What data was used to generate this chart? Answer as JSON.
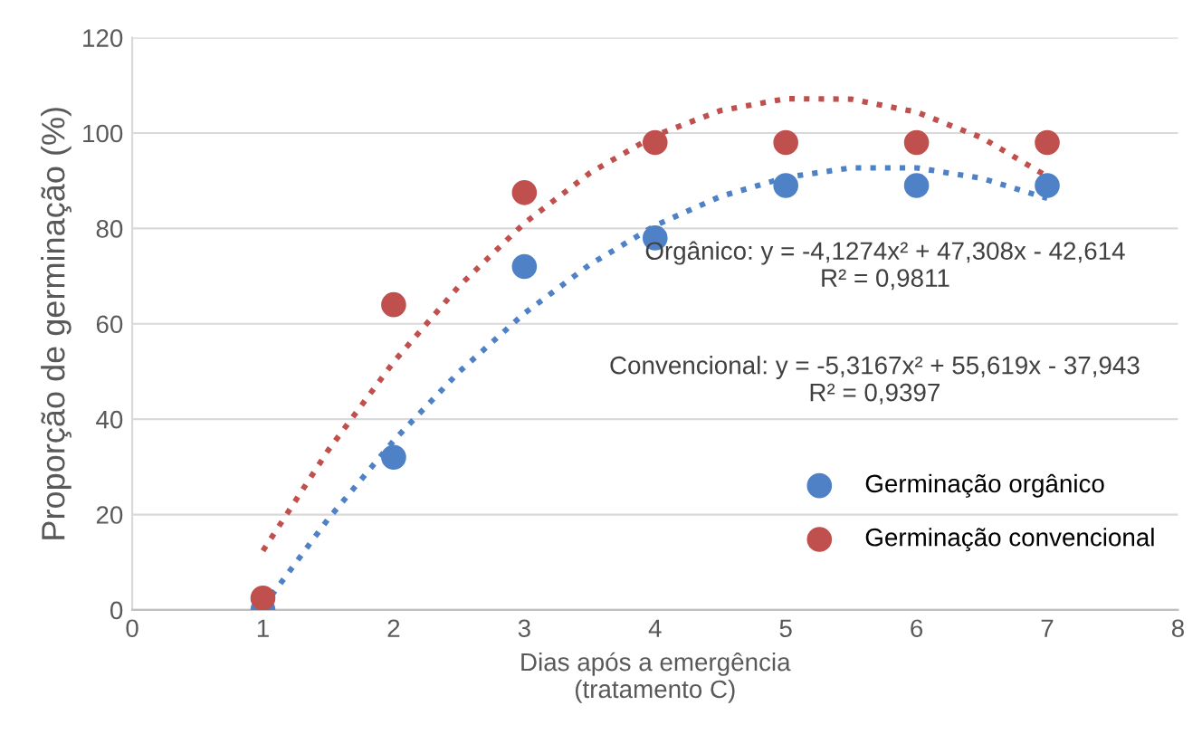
{
  "chart_data": {
    "type": "scatter",
    "xlabel": "Dias após a emergência\n(tratamento C)",
    "ylabel": "Proporção de germinação (%)",
    "x": [
      1,
      2,
      3,
      4,
      5,
      6,
      7
    ],
    "series": [
      {
        "name": "Germinação orgânico",
        "color": "#4f81c7",
        "values": [
          0,
          32,
          72,
          78,
          89,
          89,
          89
        ],
        "marker": "circle"
      },
      {
        "name": "Germinação convencional",
        "color": "#c0504d",
        "values": [
          2.5,
          64,
          87.5,
          98,
          98,
          98,
          98
        ],
        "marker": "circle"
      },
      {
        "type": "line",
        "color": "#4f81c7",
        "line_style": "dotted",
        "x": [
          1,
          1.5,
          2,
          2.5,
          3,
          3.5,
          4,
          4.5,
          5,
          5.5,
          6,
          6.5,
          7
        ],
        "values": [
          0.6,
          19.1,
          35.5,
          49.9,
          62.2,
          72.4,
          80.6,
          86.7,
          90.7,
          92.7,
          92.7,
          90.5,
          86.3
        ]
      },
      {
        "type": "line",
        "color": "#c0504d",
        "line_style": "dotted",
        "x": [
          1,
          1.5,
          2,
          2.5,
          3,
          3.5,
          4,
          4.5,
          5,
          5.5,
          6,
          6.5,
          7
        ],
        "values": [
          12.4,
          33.5,
          52.0,
          67.9,
          81.1,
          91.6,
          99.5,
          104.7,
          107.2,
          107.1,
          104.4,
          99.0,
          90.9
        ]
      }
    ],
    "annotations": [
      "Orgânico: y = -4,1274x² + 47,308x - 42,614\nR² = 0,9811",
      "Convencional: y = -5,3167x² + 55,619x - 37,943\nR² = 0,9397"
    ],
    "xlim": [
      0,
      8
    ],
    "xticks": [
      0,
      1,
      2,
      3,
      4,
      5,
      6,
      7,
      8
    ],
    "ylim": [
      0,
      120
    ],
    "yticks": [
      0,
      20,
      40,
      60,
      80,
      100,
      120
    ],
    "grid": "y",
    "legend": "right"
  }
}
